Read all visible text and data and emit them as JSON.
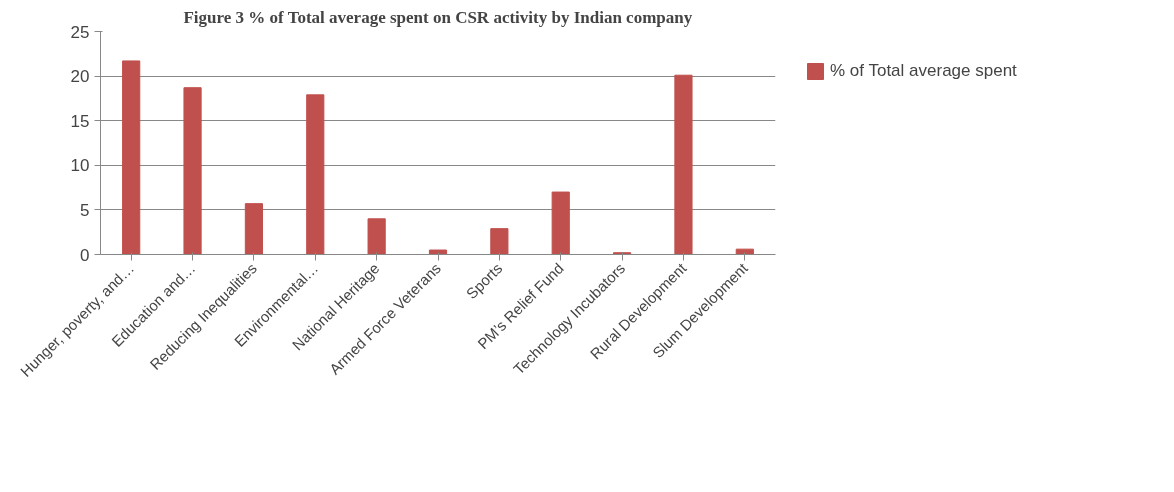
{
  "chart_data": {
    "type": "bar",
    "title": "Figure 3 % of Total average spent on CSR activity by Indian company",
    "categories": [
      "Hunger, poverty, and…",
      "Education and…",
      "Reducing Inequalities",
      "Environmental…",
      "National Heritage",
      "Armed Force Veterans",
      "Sports",
      "PM’s Relief Fund",
      "Technology Incubators",
      "Rural Development",
      "Slum Development"
    ],
    "series": [
      {
        "name": "% of Total average spent",
        "color": "#c0504d",
        "values": [
          21.7,
          18.7,
          5.7,
          17.9,
          4.0,
          0.5,
          2.9,
          7.0,
          0.2,
          20.1,
          0.6
        ]
      }
    ],
    "ylim": [
      0,
      25
    ],
    "yticks": [
      0,
      5,
      10,
      15,
      20,
      25
    ],
    "grid": "y",
    "legend": "right"
  }
}
